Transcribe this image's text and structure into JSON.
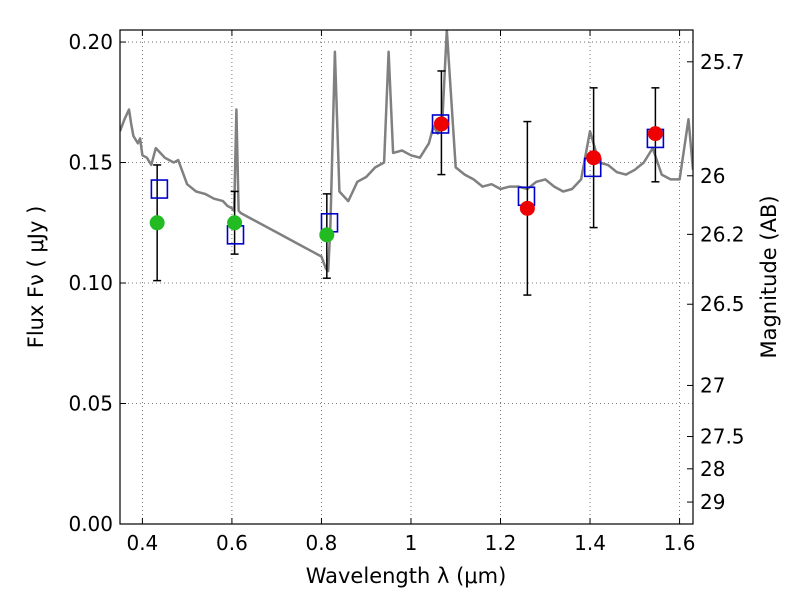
{
  "chart_data": {
    "type": "scatter",
    "xlabel": "Wavelength  λ (μm)",
    "ylabel": "Flux  Fν  ( μJy )",
    "y2label": "Magnitude (AB)",
    "xlim": [
      0.35,
      1.63
    ],
    "ylim": [
      0.0,
      0.205
    ],
    "grid": true,
    "x_ticks": [
      0.4,
      0.6,
      0.8,
      1.0,
      1.2,
      1.4,
      1.6
    ],
    "x_tick_labels": [
      "0.4",
      "0.6",
      "0.8",
      "1",
      "1.2",
      "1.4",
      "1.6"
    ],
    "y_ticks": [
      0.0,
      0.05,
      0.1,
      0.15,
      0.2
    ],
    "y_tick_labels": [
      "0.00",
      "0.05",
      "0.10",
      "0.15",
      "0.20"
    ],
    "y2_ticks": [
      {
        "label": "25.7",
        "flux": 0.1918
      },
      {
        "label": "26",
        "flux": 0.1445
      },
      {
        "label": "26.2",
        "flux": 0.1202
      },
      {
        "label": "26.5",
        "flux": 0.0912
      },
      {
        "label": "27",
        "flux": 0.0575
      },
      {
        "label": "27.5",
        "flux": 0.0363
      },
      {
        "label": "28",
        "flux": 0.0229
      },
      {
        "label": "29",
        "flux": 0.0091
      }
    ],
    "colors": {
      "template": "#808080",
      "model": "#0000cc",
      "optical": "#22bb22",
      "nir": "#ee0000",
      "errorbar": "#000000",
      "grid": "#555555"
    },
    "series": [
      {
        "style": "line",
        "x": [
          0.35,
          0.36,
          0.37,
          0.375,
          0.38,
          0.39,
          0.395,
          0.4,
          0.41,
          0.42,
          0.43,
          0.44,
          0.45,
          0.46,
          0.47,
          0.48,
          0.5,
          0.52,
          0.54,
          0.56,
          0.58,
          0.59,
          0.6,
          0.605,
          0.61,
          0.615,
          0.62,
          0.65,
          0.7,
          0.75,
          0.78,
          0.8,
          0.81,
          0.815,
          0.82,
          0.83,
          0.84,
          0.85,
          0.86,
          0.87,
          0.88,
          0.9,
          0.92,
          0.94,
          0.95,
          0.96,
          0.98,
          1.0,
          1.02,
          1.04,
          1.05,
          1.06,
          1.07,
          1.08,
          1.1,
          1.12,
          1.14,
          1.16,
          1.18,
          1.2,
          1.22,
          1.24,
          1.26,
          1.28,
          1.3,
          1.32,
          1.34,
          1.36,
          1.38,
          1.4,
          1.42,
          1.44,
          1.46,
          1.48,
          1.5,
          1.52,
          1.54,
          1.56,
          1.58,
          1.6,
          1.62,
          1.63
        ],
        "y": [
          0.163,
          0.168,
          0.172,
          0.166,
          0.161,
          0.158,
          0.16,
          0.153,
          0.152,
          0.149,
          0.156,
          0.154,
          0.152,
          0.151,
          0.15,
          0.151,
          0.141,
          0.138,
          0.137,
          0.135,
          0.134,
          0.132,
          0.131,
          0.13,
          0.172,
          0.13,
          0.129,
          0.126,
          0.121,
          0.116,
          0.113,
          0.111,
          0.106,
          0.105,
          0.124,
          0.196,
          0.138,
          0.136,
          0.134,
          0.138,
          0.142,
          0.144,
          0.148,
          0.15,
          0.196,
          0.154,
          0.155,
          0.153,
          0.152,
          0.158,
          0.165,
          0.162,
          0.167,
          0.205,
          0.148,
          0.145,
          0.143,
          0.14,
          0.141,
          0.139,
          0.14,
          0.14,
          0.139,
          0.142,
          0.143,
          0.14,
          0.138,
          0.139,
          0.143,
          0.163,
          0.15,
          0.149,
          0.146,
          0.145,
          0.147,
          0.15,
          0.156,
          0.145,
          0.143,
          0.143,
          0.168,
          0.147
        ]
      },
      {
        "style": "open-square",
        "x": [
          0.438,
          0.608,
          0.818,
          1.066,
          1.258,
          1.406,
          1.546
        ],
        "y": [
          0.139,
          0.12,
          0.125,
          0.166,
          0.136,
          0.148,
          0.16
        ]
      },
      {
        "style": "filled-circle-green",
        "x": [
          0.433,
          0.606,
          0.812
        ],
        "y": [
          0.125,
          0.125,
          0.12
        ]
      },
      {
        "style": "filled-circle-red",
        "x": [
          1.068,
          1.26,
          1.408,
          1.546
        ],
        "y": [
          0.166,
          0.131,
          0.152,
          0.162
        ]
      },
      {
        "style": "errorbar",
        "x": [
          0.433,
          0.606,
          0.812,
          1.068,
          1.26,
          1.408,
          1.546
        ],
        "y": [
          0.125,
          0.125,
          0.12,
          0.166,
          0.131,
          0.152,
          0.162
        ],
        "yerr_low": [
          0.101,
          0.112,
          0.102,
          0.145,
          0.095,
          0.123,
          0.142
        ],
        "yerr_high": [
          0.149,
          0.138,
          0.137,
          0.188,
          0.167,
          0.181,
          0.181
        ]
      }
    ]
  }
}
